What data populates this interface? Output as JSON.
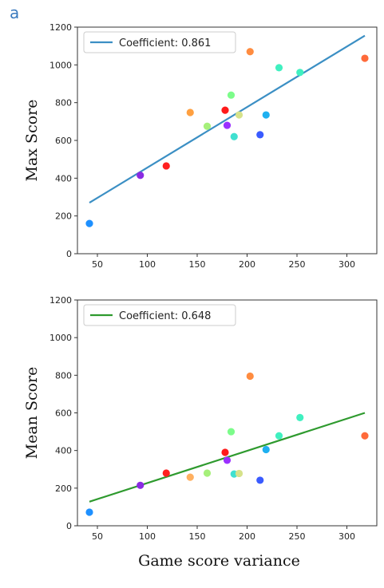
{
  "panel_label": "a",
  "chart_data": [
    {
      "type": "scatter",
      "title": "",
      "xlabel": "",
      "ylabel": "Max Score",
      "xlim": [
        30,
        330
      ],
      "ylim": [
        0,
        1200
      ],
      "xticks": [
        50,
        100,
        150,
        200,
        250,
        300
      ],
      "yticks": [
        0,
        200,
        400,
        600,
        800,
        1000,
        1200
      ],
      "legend": {
        "label": "Coefficient: 0.861",
        "placement": "top-left"
      },
      "fit_line": {
        "color": "#3b8fc4",
        "x": [
          42,
          318
        ],
        "y": [
          270,
          1155
        ]
      },
      "points": [
        {
          "x": 42,
          "y": 160,
          "color": "#1e90ff"
        },
        {
          "x": 93,
          "y": 415,
          "color": "#8a2be2"
        },
        {
          "x": 119,
          "y": 465,
          "color": "#ff2020"
        },
        {
          "x": 143,
          "y": 748,
          "color": "#ffa040"
        },
        {
          "x": 160,
          "y": 675,
          "color": "#a6f07a"
        },
        {
          "x": 178,
          "y": 760,
          "color": "#ff1a1a"
        },
        {
          "x": 180,
          "y": 680,
          "color": "#9b30ff"
        },
        {
          "x": 184,
          "y": 840,
          "color": "#7cfc8a"
        },
        {
          "x": 187,
          "y": 620,
          "color": "#40e0d0"
        },
        {
          "x": 192,
          "y": 735,
          "color": "#d6e28a"
        },
        {
          "x": 203,
          "y": 1070,
          "color": "#ff8c40"
        },
        {
          "x": 213,
          "y": 630,
          "color": "#3a5bff"
        },
        {
          "x": 219,
          "y": 735,
          "color": "#1fb0f0"
        },
        {
          "x": 232,
          "y": 985,
          "color": "#40f0c0"
        },
        {
          "x": 253,
          "y": 960,
          "color": "#40f0c0"
        },
        {
          "x": 318,
          "y": 1035,
          "color": "#ff6a3a"
        }
      ]
    },
    {
      "type": "scatter",
      "title": "",
      "xlabel": "Game score variance",
      "ylabel": "Mean Score",
      "xlim": [
        30,
        330
      ],
      "ylim": [
        0,
        1200
      ],
      "xticks": [
        50,
        100,
        150,
        200,
        250,
        300
      ],
      "yticks": [
        0,
        200,
        400,
        600,
        800,
        1000,
        1200
      ],
      "legend": {
        "label": "Coefficient: 0.648",
        "placement": "top-left"
      },
      "fit_line": {
        "color": "#2e9a2e",
        "x": [
          42,
          318
        ],
        "y": [
          128,
          600
        ]
      },
      "points": [
        {
          "x": 42,
          "y": 72,
          "color": "#1e90ff"
        },
        {
          "x": 93,
          "y": 215,
          "color": "#8a2be2"
        },
        {
          "x": 119,
          "y": 280,
          "color": "#ff2020"
        },
        {
          "x": 143,
          "y": 258,
          "color": "#ffb060"
        },
        {
          "x": 160,
          "y": 280,
          "color": "#a6f07a"
        },
        {
          "x": 178,
          "y": 390,
          "color": "#ff1a1a"
        },
        {
          "x": 180,
          "y": 348,
          "color": "#9b30ff"
        },
        {
          "x": 184,
          "y": 500,
          "color": "#7cfc8a"
        },
        {
          "x": 187,
          "y": 275,
          "color": "#40e0d0"
        },
        {
          "x": 192,
          "y": 278,
          "color": "#d6e28a"
        },
        {
          "x": 203,
          "y": 795,
          "color": "#ff8c40"
        },
        {
          "x": 213,
          "y": 242,
          "color": "#3a5bff"
        },
        {
          "x": 219,
          "y": 405,
          "color": "#1fb0f0"
        },
        {
          "x": 232,
          "y": 478,
          "color": "#40f0c0"
        },
        {
          "x": 253,
          "y": 575,
          "color": "#40f0c0"
        },
        {
          "x": 318,
          "y": 478,
          "color": "#ff6a3a"
        }
      ]
    }
  ]
}
